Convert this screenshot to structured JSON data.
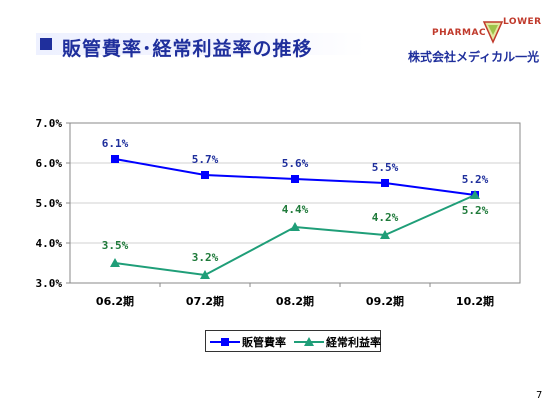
{
  "header": {
    "title": "販管費率･経常利益率の推移",
    "logo_text_left": "PHARMAC",
    "logo_text_right": "LOWER",
    "company": "株式会社メディカル一光"
  },
  "page_number": "7",
  "colors": {
    "title": "#1f2f9c",
    "series_sga": "#0000ff",
    "series_ordinary": "#1f9e78",
    "logo": "#c0392b"
  },
  "chart_data": {
    "type": "line",
    "categories": [
      "06.2期",
      "07.2期",
      "08.2期",
      "09.2期",
      "10.2期"
    ],
    "y_ticks": [
      "3.0%",
      "4.0%",
      "5.0%",
      "6.0%",
      "7.0%"
    ],
    "ylim": [
      3.0,
      7.0
    ],
    "grid": true,
    "legend_position": "bottom",
    "series": [
      {
        "name": "販管費率",
        "values": [
          6.1,
          5.7,
          5.6,
          5.5,
          5.2
        ],
        "labels": [
          "6.1%",
          "5.7%",
          "5.6%",
          "5.5%",
          "5.2%"
        ],
        "marker": "square"
      },
      {
        "name": "経常利益率",
        "values": [
          3.5,
          3.2,
          4.4,
          4.2,
          5.2
        ],
        "labels": [
          "3.5%",
          "3.2%",
          "4.4%",
          "4.2%",
          "5.2%"
        ],
        "marker": "triangle"
      }
    ]
  }
}
